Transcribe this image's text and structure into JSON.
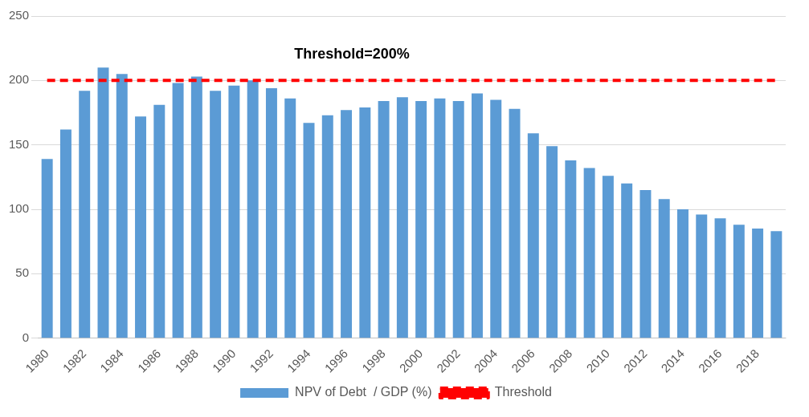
{
  "chart_data": {
    "type": "bar",
    "categories": [
      "1980",
      null,
      "1982",
      null,
      "1984",
      null,
      "1986",
      null,
      "1988",
      null,
      "1990",
      null,
      "1992",
      null,
      "1994",
      null,
      "1996",
      null,
      "1998",
      null,
      "2000",
      null,
      "2002",
      null,
      "2004",
      null,
      "2006",
      null,
      "2008",
      null,
      "2010",
      null,
      "2012",
      null,
      "2014",
      null,
      "2016",
      null,
      "2018",
      null
    ],
    "series": [
      {
        "name": "NPV of Debt  / GDP (%)",
        "color": "#5b9bd5",
        "values": [
          139,
          162,
          192,
          210,
          205,
          172,
          181,
          198,
          203,
          192,
          196,
          200,
          194,
          186,
          167,
          173,
          177,
          179,
          184,
          187,
          184,
          186,
          184,
          190,
          185,
          178,
          159,
          149,
          138,
          132,
          126,
          120,
          115,
          108,
          100,
          96,
          93,
          88,
          85,
          83
        ]
      },
      {
        "name": "Threshold",
        "type": "line",
        "color": "#ff0000",
        "line_style": "dashed",
        "marker": "none",
        "values": [
          200,
          200,
          200,
          200,
          200,
          200,
          200,
          200,
          200,
          200,
          200,
          200,
          200,
          200,
          200,
          200,
          200,
          200,
          200,
          200,
          200,
          200,
          200,
          200,
          200,
          200,
          200,
          200,
          200,
          200,
          200,
          200,
          200,
          200,
          200,
          200,
          200,
          200,
          200,
          200
        ]
      }
    ],
    "ylim": [
      0,
      250
    ],
    "yticks": [
      0,
      50,
      100,
      150,
      200,
      250
    ],
    "grid": "y",
    "legend": "bottom",
    "annotations": [
      "Threshold=200%"
    ]
  }
}
